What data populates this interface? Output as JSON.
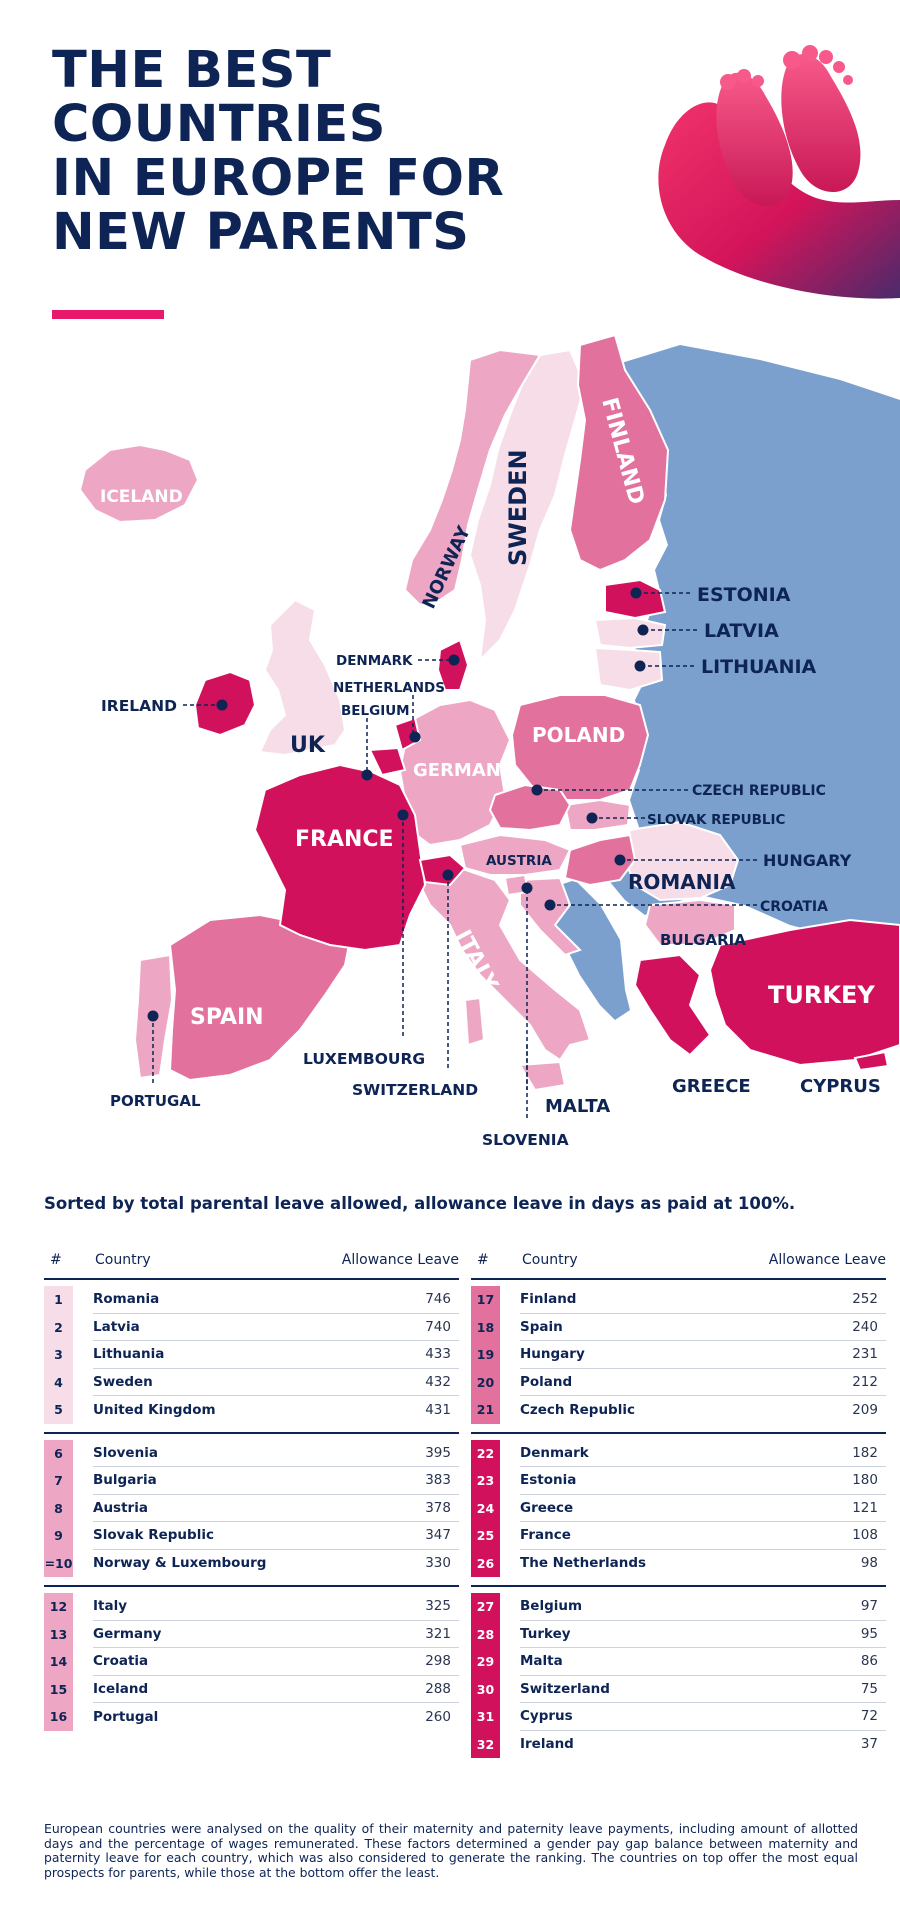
{
  "title": {
    "line1": "THE BEST",
    "line2": "COUNTRIES",
    "line3": "IN EUROPE FOR",
    "line4": "NEW PARENTS"
  },
  "colors": {
    "navy": "#0d2454",
    "accent": "#e8196a",
    "not_ranked": "#7ba0cd",
    "tier_1": "#f6dde8",
    "tier_2": "#eda6c4",
    "tier_3": "#e2729d",
    "tier_4": "#d2115c"
  },
  "map_labels": {
    "iceland": "ICELAND",
    "norway": "NORWAY",
    "sweden": "SWEDEN",
    "finland": "FINLAND",
    "estonia": "ESTONIA",
    "latvia": "LATVIA",
    "lithuania": "LITHUANIA",
    "denmark": "DENMARK",
    "netherlands": "NETHERLANDS",
    "belgium": "BELGIUM",
    "ireland": "IRELAND",
    "uk": "UK",
    "poland": "POLAND",
    "germany": "GERMANY",
    "czech": "CZECH REPUBLIC",
    "slovak": "SLOVAK REPUBLIC",
    "france": "FRANCE",
    "austria": "AUSTRIA",
    "hungary": "HUNGARY",
    "romania": "ROMANIA",
    "croatia": "CROATIA",
    "italy": "ITALY",
    "bulgaria": "BULGARIA",
    "turkey": "TURKEY",
    "spain": "SPAIN",
    "luxembourg": "LUXEMBOURG",
    "switzerland": "SWITZERLAND",
    "portugal": "PORTUGAL",
    "greece": "GREECE",
    "cyprus": "CYPRUS",
    "malta": "MALTA",
    "slovenia": "SLOVENIA"
  },
  "subtitle": "Sorted by total parental leave allowed, allowance leave in days as paid at 100%.",
  "table_header": {
    "num": "#",
    "country": "Country",
    "value": "Allowance Leave"
  },
  "tables": [
    {
      "groups": [
        {
          "tier": 1,
          "rows": [
            {
              "rank": "1",
              "country": "Romania",
              "days": "746"
            },
            {
              "rank": "2",
              "country": "Latvia",
              "days": "740"
            },
            {
              "rank": "3",
              "country": "Lithuania",
              "days": "433"
            },
            {
              "rank": "4",
              "country": "Sweden",
              "days": "432"
            },
            {
              "rank": "5",
              "country": "United Kingdom",
              "days": "431"
            }
          ]
        },
        {
          "tier": 2,
          "rows": [
            {
              "rank": "6",
              "country": "Slovenia",
              "days": "395"
            },
            {
              "rank": "7",
              "country": "Bulgaria",
              "days": "383"
            },
            {
              "rank": "8",
              "country": "Austria",
              "days": "378"
            },
            {
              "rank": "9",
              "country": "Slovak Republic",
              "days": "347"
            },
            {
              "rank": "=10",
              "country": "Norway & Luxembourg",
              "days": "330"
            }
          ]
        },
        {
          "tier": 2,
          "rows": [
            {
              "rank": "12",
              "country": "Italy",
              "days": "325"
            },
            {
              "rank": "13",
              "country": "Germany",
              "days": "321"
            },
            {
              "rank": "14",
              "country": "Croatia",
              "days": "298"
            },
            {
              "rank": "15",
              "country": "Iceland",
              "days": "288"
            },
            {
              "rank": "16",
              "country": "Portugal",
              "days": "260"
            }
          ]
        }
      ]
    },
    {
      "groups": [
        {
          "tier": 3,
          "rows": [
            {
              "rank": "17",
              "country": "Finland",
              "days": "252"
            },
            {
              "rank": "18",
              "country": "Spain",
              "days": "240"
            },
            {
              "rank": "19",
              "country": "Hungary",
              "days": "231"
            },
            {
              "rank": "20",
              "country": "Poland",
              "days": "212"
            },
            {
              "rank": "21",
              "country": "Czech Republic",
              "days": "209"
            }
          ]
        },
        {
          "tier": 4,
          "rows": [
            {
              "rank": "22",
              "country": "Denmark",
              "days": "182"
            },
            {
              "rank": "23",
              "country": "Estonia",
              "days": "180"
            },
            {
              "rank": "24",
              "country": "Greece",
              "days": "121"
            },
            {
              "rank": "25",
              "country": "France",
              "days": "108"
            },
            {
              "rank": "26",
              "country": "The Netherlands",
              "days": "98"
            }
          ]
        },
        {
          "tier": 4,
          "rows": [
            {
              "rank": "27",
              "country": "Belgium",
              "days": "97"
            },
            {
              "rank": "28",
              "country": "Turkey",
              "days": "95"
            },
            {
              "rank": "29",
              "country": "Malta",
              "days": "86"
            },
            {
              "rank": "30",
              "country": "Switzerland",
              "days": "75"
            },
            {
              "rank": "31",
              "country": "Cyprus",
              "days": "72"
            },
            {
              "rank": "32",
              "country": "Ireland",
              "days": "37"
            }
          ]
        }
      ]
    }
  ],
  "footnote": "European countries were analysed on the quality of their maternity and paternity leave payments, including amount of allotted days and the percentage of wages remunerated. These factors determined a gender pay gap balance between maternity and paternity leave for each country, which was also considered to generate the ranking. The countries on top offer the most equal prospects for parents, while those at the bottom offer the least."
}
